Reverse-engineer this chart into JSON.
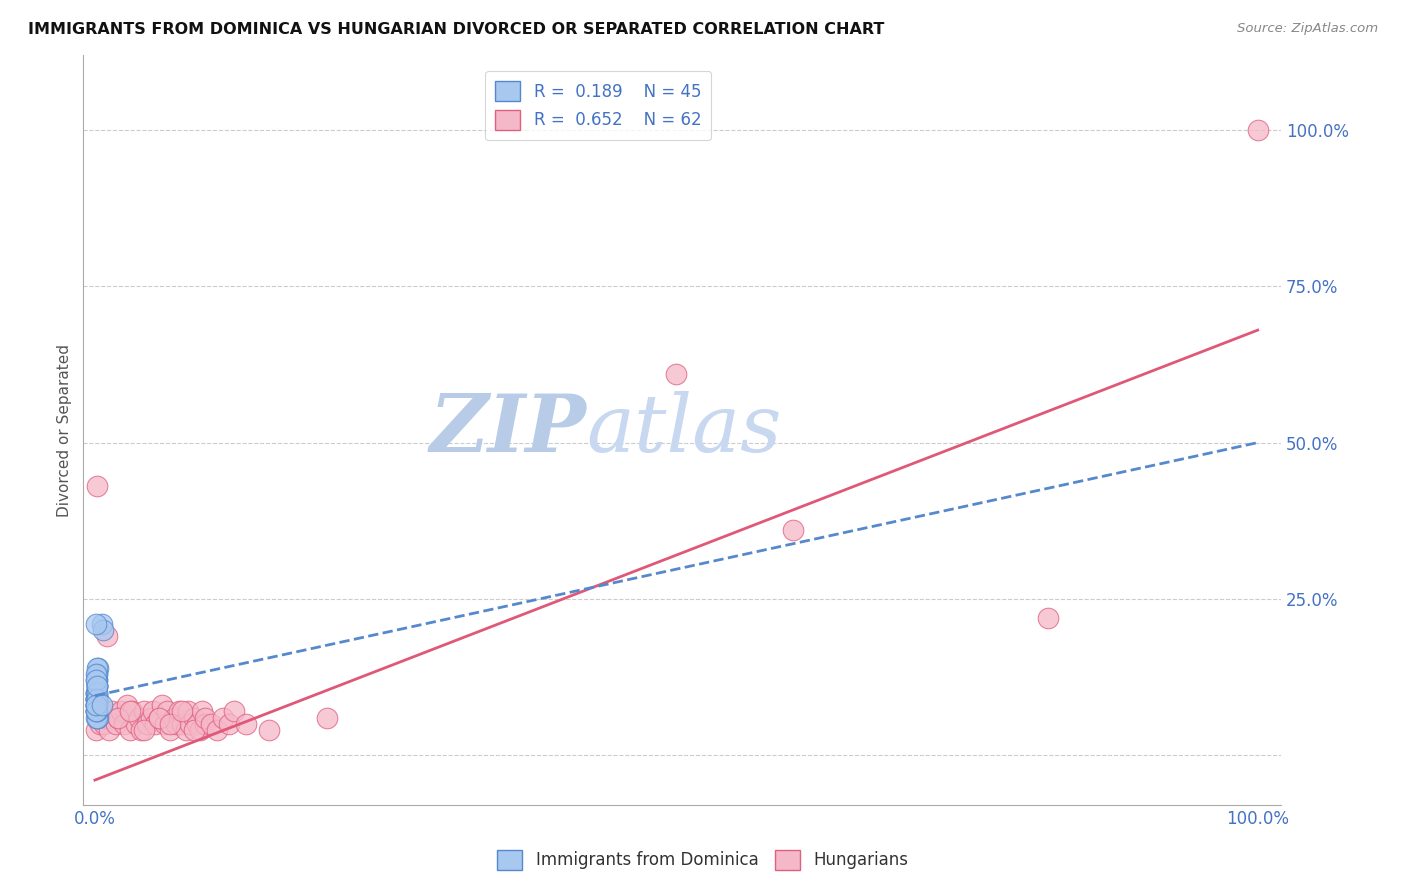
{
  "title": "IMMIGRANTS FROM DOMINICA VS HUNGARIAN DIVORCED OR SEPARATED CORRELATION CHART",
  "source_text": "Source: ZipAtlas.com",
  "ylabel": "Divorced or Separated",
  "xlim": [
    -0.01,
    1.02
  ],
  "ylim": [
    -0.08,
    1.12
  ],
  "x_ticks": [
    0.0,
    1.0
  ],
  "x_tick_labels": [
    "0.0%",
    "100.0%"
  ],
  "y_ticks": [
    0.0,
    0.25,
    0.5,
    0.75,
    1.0
  ],
  "y_tick_labels": [
    "",
    "25.0%",
    "50.0%",
    "75.0%",
    "100.0%"
  ],
  "blue_R": 0.189,
  "blue_N": 45,
  "pink_R": 0.652,
  "pink_N": 62,
  "blue_color": "#a8c8f0",
  "pink_color": "#f5b8c8",
  "blue_edge_color": "#5588cc",
  "pink_edge_color": "#e06080",
  "blue_line_color": "#5588cc",
  "pink_line_color": "#e05878",
  "watermark_ZIP": "ZIP",
  "watermark_atlas": "atlas",
  "watermark_color_ZIP": "#b8cce8",
  "watermark_color_atlas": "#c8d8f0",
  "legend_label_blue": "Immigrants from Dominica",
  "legend_label_pink": "Hungarians",
  "blue_scatter_x": [
    0.001,
    0.002,
    0.003,
    0.001,
    0.002,
    0.001,
    0.002,
    0.003,
    0.001,
    0.002,
    0.001,
    0.002,
    0.001,
    0.001,
    0.003,
    0.002,
    0.001,
    0.002,
    0.001,
    0.002,
    0.001,
    0.002,
    0.001,
    0.002,
    0.001,
    0.001,
    0.002,
    0.001,
    0.002,
    0.001,
    0.002,
    0.001,
    0.002,
    0.001,
    0.002,
    0.001,
    0.001,
    0.002,
    0.001,
    0.002,
    0.006,
    0.007,
    0.001,
    0.001,
    0.006
  ],
  "blue_scatter_y": [
    0.09,
    0.11,
    0.14,
    0.1,
    0.08,
    0.07,
    0.12,
    0.06,
    0.09,
    0.13,
    0.08,
    0.11,
    0.07,
    0.1,
    0.09,
    0.12,
    0.06,
    0.13,
    0.07,
    0.11,
    0.09,
    0.1,
    0.08,
    0.07,
    0.12,
    0.09,
    0.14,
    0.08,
    0.06,
    0.1,
    0.11,
    0.09,
    0.07,
    0.13,
    0.1,
    0.08,
    0.12,
    0.09,
    0.07,
    0.11,
    0.21,
    0.2,
    0.08,
    0.21,
    0.08
  ],
  "pink_scatter_x": [
    0.001,
    0.003,
    0.004,
    0.006,
    0.008,
    0.01,
    0.012,
    0.015,
    0.018,
    0.02,
    0.022,
    0.025,
    0.028,
    0.03,
    0.032,
    0.035,
    0.038,
    0.04,
    0.042,
    0.045,
    0.048,
    0.05,
    0.052,
    0.055,
    0.058,
    0.06,
    0.062,
    0.065,
    0.068,
    0.07,
    0.072,
    0.075,
    0.078,
    0.08,
    0.082,
    0.085,
    0.088,
    0.09,
    0.092,
    0.095,
    0.002,
    0.01,
    0.02,
    0.03,
    0.042,
    0.055,
    0.065,
    0.075,
    0.085,
    0.095,
    0.1,
    0.105,
    0.11,
    0.115,
    0.12,
    0.13,
    0.15,
    0.2,
    0.5,
    0.6,
    0.82,
    1.0
  ],
  "pink_scatter_y": [
    0.04,
    0.06,
    0.05,
    0.07,
    0.05,
    0.06,
    0.04,
    0.07,
    0.05,
    0.06,
    0.07,
    0.05,
    0.08,
    0.04,
    0.07,
    0.05,
    0.06,
    0.04,
    0.07,
    0.05,
    0.06,
    0.07,
    0.05,
    0.06,
    0.08,
    0.05,
    0.07,
    0.04,
    0.06,
    0.05,
    0.07,
    0.05,
    0.04,
    0.07,
    0.05,
    0.06,
    0.05,
    0.04,
    0.07,
    0.05,
    0.43,
    0.19,
    0.06,
    0.07,
    0.04,
    0.06,
    0.05,
    0.07,
    0.04,
    0.06,
    0.05,
    0.04,
    0.06,
    0.05,
    0.07,
    0.05,
    0.04,
    0.06,
    0.61,
    0.36,
    0.22,
    1.0
  ],
  "pink_trend_x0": 0.0,
  "pink_trend_y0": -0.04,
  "pink_trend_x1": 1.0,
  "pink_trend_y1": 0.68,
  "blue_trend_x0": 0.0,
  "blue_trend_y0": 0.095,
  "blue_trend_x1": 1.0,
  "blue_trend_y1": 0.5
}
